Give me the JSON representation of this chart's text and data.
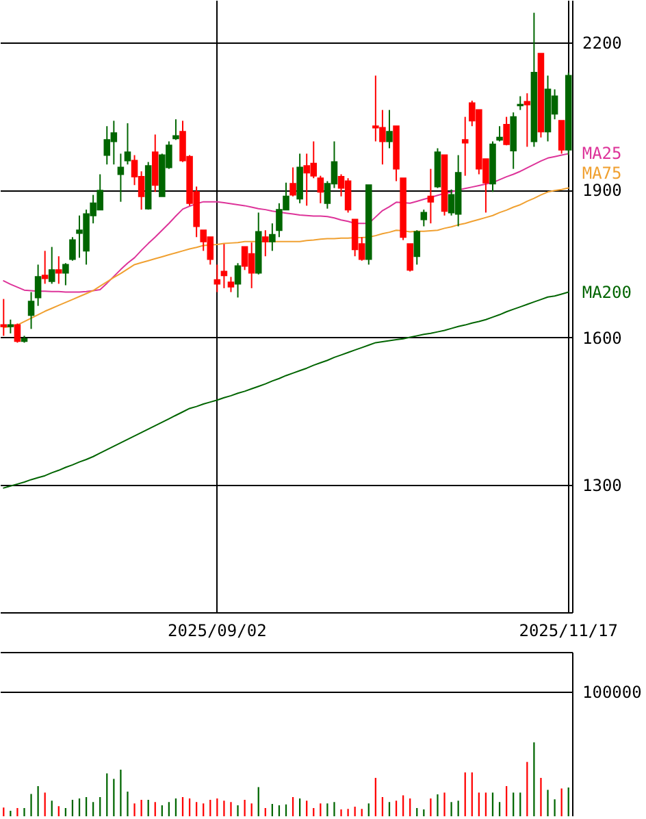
{
  "chart_data": [
    {
      "type": "candlestick",
      "categories": [
        null,
        null,
        null,
        null,
        null,
        null,
        null,
        null,
        null,
        null,
        null,
        null,
        null,
        null,
        null,
        null,
        null,
        null,
        null,
        null,
        null,
        null,
        null,
        null,
        null,
        null,
        null,
        null,
        null,
        null,
        null,
        "2025/09/02",
        null,
        null,
        null,
        null,
        null,
        null,
        null,
        null,
        null,
        null,
        null,
        null,
        null,
        null,
        null,
        null,
        null,
        null,
        null,
        null,
        null,
        null,
        null,
        null,
        null,
        null,
        null,
        null,
        null,
        null,
        null,
        null,
        null,
        null,
        null,
        null,
        null,
        null,
        null,
        null,
        null,
        null,
        null,
        null,
        null,
        null,
        null,
        null,
        null,
        null,
        "2025/11/17"
      ],
      "ohlc": [
        [
          1625,
          1678,
          1603,
          1622
        ],
        [
          1622,
          1636,
          1608,
          1625
        ],
        [
          1625,
          1628,
          1589,
          1592
        ],
        [
          1592,
          1603,
          1589,
          1597
        ],
        [
          1645,
          1692,
          1617,
          1673
        ],
        [
          1681,
          1748,
          1664,
          1723
        ],
        [
          1726,
          1776,
          1709,
          1720
        ],
        [
          1714,
          1784,
          1709,
          1737
        ],
        [
          1737,
          1765,
          1709,
          1731
        ],
        [
          1731,
          1751,
          1706,
          1748
        ],
        [
          1759,
          1804,
          1756,
          1798
        ],
        [
          1812,
          1848,
          1762,
          1818
        ],
        [
          1776,
          1860,
          1748,
          1851
        ],
        [
          1848,
          1890,
          1832,
          1873
        ],
        [
          1860,
          1932,
          1860,
          1899
        ],
        [
          1971,
          2030,
          1952,
          2002
        ],
        [
          1999,
          2041,
          1952,
          2016
        ],
        [
          1932,
          1974,
          1876,
          1946
        ],
        [
          1960,
          2036,
          1952,
          1977
        ],
        [
          1960,
          1971,
          1910,
          1927
        ],
        [
          1927,
          1938,
          1860,
          1887
        ],
        [
          1862,
          1957,
          1860,
          1949
        ],
        [
          1977,
          2013,
          1896,
          1910
        ],
        [
          1887,
          1974,
          1887,
          1971
        ],
        [
          1946,
          1999,
          1943,
          1991
        ],
        [
          2005,
          2044,
          2002,
          2010
        ],
        [
          2019,
          2041,
          1957,
          1960
        ],
        [
          1968,
          1971,
          1868,
          1873
        ],
        [
          1896,
          1907,
          1804,
          1826
        ],
        [
          1818,
          1818,
          1776,
          1795
        ],
        [
          1804,
          1804,
          1748,
          1759
        ],
        [
          1717,
          1748,
          1692,
          1709
        ],
        [
          1734,
          1790,
          1700,
          1726
        ],
        [
          1712,
          1723,
          1692,
          1703
        ],
        [
          1709,
          1751,
          1681,
          1745
        ],
        [
          1784,
          1784,
          1737,
          1745
        ],
        [
          1770,
          1793,
          1700,
          1731
        ],
        [
          1731,
          1854,
          1728,
          1815
        ],
        [
          1804,
          1818,
          1765,
          1795
        ],
        [
          1795,
          1832,
          1776,
          1809
        ],
        [
          1818,
          1873,
          1804,
          1860
        ],
        [
          1860,
          1915,
          1860,
          1887
        ],
        [
          1913,
          1946,
          1887,
          1890
        ],
        [
          1882,
          1974,
          1873,
          1946
        ],
        [
          1949,
          1974,
          1868,
          1935
        ],
        [
          1954,
          1999,
          1924,
          1929
        ],
        [
          1924,
          1929,
          1873,
          1896
        ],
        [
          1873,
          1918,
          1862,
          1913
        ],
        [
          1913,
          1999,
          1904,
          1957
        ],
        [
          1927,
          1932,
          1887,
          1904
        ],
        [
          1918,
          1924,
          1854,
          1860
        ],
        [
          1840,
          1840,
          1765,
          1779
        ],
        [
          1790,
          1804,
          1756,
          1759
        ],
        [
          1759,
          1910,
          1748,
          1910
        ],
        [
          2030,
          2133,
          1999,
          2027
        ],
        [
          2027,
          2063,
          1952,
          1999
        ],
        [
          1999,
          2063,
          1985,
          2019
        ],
        [
          2030,
          2030,
          1918,
          1943
        ],
        [
          1924,
          1924,
          1798,
          1804
        ],
        [
          1790,
          1790,
          1734,
          1737
        ],
        [
          1765,
          1818,
          1748,
          1815
        ],
        [
          1840,
          1860,
          1826,
          1854
        ],
        [
          1887,
          1943,
          1832,
          1876
        ],
        [
          1907,
          1985,
          1904,
          1977
        ],
        [
          1971,
          1971,
          1848,
          1857
        ],
        [
          1854,
          1901,
          1848,
          1890
        ],
        [
          1851,
          1971,
          1826,
          1935
        ],
        [
          2002,
          2049,
          1929,
          1996
        ],
        [
          2077,
          2082,
          2030,
          2041
        ],
        [
          2063,
          2063,
          1932,
          1943
        ],
        [
          1963,
          1963,
          1854,
          1915
        ],
        [
          1913,
          1999,
          1896,
          1993
        ],
        [
          2002,
          2030,
          1999,
          2007
        ],
        [
          2033,
          2049,
          1991,
          1993
        ],
        [
          1980,
          2058,
          1943,
          2049
        ],
        [
          2072,
          2091,
          2063,
          2074
        ],
        [
          2080,
          2097,
          1988,
          2074
        ],
        [
          1999,
          2261,
          1988,
          2139
        ],
        [
          2178,
          2178,
          2007,
          2019
        ],
        [
          2019,
          2133,
          1999,
          2105
        ],
        [
          2055,
          2105,
          2044,
          2091
        ],
        [
          2041,
          2041,
          1974,
          1982
        ],
        [
          1982,
          2139,
          1971,
          2133
        ]
      ],
      "colors": [
        "#ff0000",
        "#006600",
        "#ff0000",
        "#006600",
        "#006600",
        "#006600",
        "#ff0000",
        "#006600",
        "#ff0000",
        "#006600",
        "#006600",
        "#006600",
        "#006600",
        "#006600",
        "#006600",
        "#006600",
        "#006600",
        "#006600",
        "#006600",
        "#ff0000",
        "#ff0000",
        "#006600",
        "#ff0000",
        "#006600",
        "#006600",
        "#006600",
        "#ff0000",
        "#ff0000",
        "#ff0000",
        "#ff0000",
        "#ff0000",
        "#ff0000",
        "#ff0000",
        "#ff0000",
        "#006600",
        "#ff0000",
        "#ff0000",
        "#006600",
        "#ff0000",
        "#006600",
        "#006600",
        "#006600",
        "#ff0000",
        "#006600",
        "#ff0000",
        "#ff0000",
        "#ff0000",
        "#006600",
        "#006600",
        "#ff0000",
        "#ff0000",
        "#ff0000",
        "#ff0000",
        "#006600",
        "#ff0000",
        "#ff0000",
        "#006600",
        "#ff0000",
        "#ff0000",
        "#ff0000",
        "#006600",
        "#006600",
        "#ff0000",
        "#006600",
        "#ff0000",
        "#006600",
        "#006600",
        "#ff0000",
        "#ff0000",
        "#ff0000",
        "#ff0000",
        "#006600",
        "#006600",
        "#ff0000",
        "#006600",
        "#006600",
        "#ff0000",
        "#006600",
        "#ff0000",
        "#006600",
        "#006600",
        "#ff0000",
        "#006600"
      ],
      "series": [
        {
          "name": "MA25",
          "type": "line",
          "color": "#dd3399",
          "values": [
            1715,
            1708,
            1702,
            1696,
            1695,
            1694,
            1694,
            1693,
            1693,
            1692,
            1692,
            1692,
            1693,
            1695,
            1697,
            1710,
            1724,
            1738,
            1751,
            1762,
            1777,
            1791,
            1804,
            1818,
            1832,
            1847,
            1861,
            1867,
            1872,
            1876,
            1876,
            1876,
            1874,
            1872,
            1870,
            1868,
            1865,
            1862,
            1860,
            1857,
            1855,
            1853,
            1851,
            1849,
            1848,
            1847,
            1847,
            1846,
            1843,
            1839,
            1836,
            1832,
            1832,
            1832,
            1845,
            1858,
            1866,
            1875,
            1874,
            1873,
            1877,
            1881,
            1885,
            1889,
            1893,
            1896,
            1900,
            1903,
            1906,
            1909,
            1912,
            1915,
            1921,
            1927,
            1932,
            1938,
            1945,
            1952,
            1959,
            1965,
            1968,
            1971,
            1974
          ]
        },
        {
          "name": "MA75",
          "type": "line",
          "color": "#f0a030",
          "values": [
            1620,
            1622,
            1625,
            1632,
            1639,
            1646,
            1653,
            1659,
            1665,
            1671,
            1677,
            1683,
            1689,
            1695,
            1704,
            1713,
            1722,
            1730,
            1739,
            1748,
            1752,
            1756,
            1760,
            1764,
            1768,
            1772,
            1776,
            1780,
            1783,
            1787,
            1788,
            1789,
            1791,
            1792,
            1793,
            1795,
            1795,
            1795,
            1795,
            1795,
            1795,
            1795,
            1795,
            1795,
            1797,
            1798,
            1800,
            1801,
            1801,
            1802,
            1802,
            1803,
            1803,
            1804,
            1807,
            1811,
            1814,
            1818,
            1817,
            1815,
            1816,
            1816,
            1817,
            1818,
            1822,
            1825,
            1829,
            1832,
            1836,
            1840,
            1844,
            1848,
            1854,
            1859,
            1865,
            1870,
            1877,
            1883,
            1890,
            1896,
            1899,
            1901,
            1904
          ]
        },
        {
          "name": "MA200",
          "type": "line",
          "color": "#006400",
          "values": [
            1293,
            1297,
            1301,
            1305,
            1310,
            1314,
            1318,
            1324,
            1329,
            1335,
            1340,
            1346,
            1351,
            1357,
            1364,
            1371,
            1378,
            1385,
            1392,
            1399,
            1406,
            1413,
            1420,
            1427,
            1434,
            1441,
            1448,
            1455,
            1459,
            1464,
            1468,
            1472,
            1477,
            1481,
            1486,
            1490,
            1495,
            1500,
            1505,
            1511,
            1516,
            1522,
            1527,
            1532,
            1537,
            1543,
            1548,
            1553,
            1559,
            1564,
            1569,
            1574,
            1579,
            1584,
            1589,
            1591,
            1593,
            1595,
            1597,
            1600,
            1603,
            1606,
            1608,
            1611,
            1614,
            1618,
            1622,
            1625,
            1629,
            1632,
            1636,
            1641,
            1646,
            1652,
            1657,
            1662,
            1667,
            1672,
            1677,
            1682,
            1684,
            1688,
            1692
          ]
        }
      ],
      "ylim": [
        1040,
        2287
      ],
      "yticks": [
        1300,
        1600,
        1900,
        2200
      ],
      "grid": true
    },
    {
      "type": "bar",
      "categories": [
        null,
        null,
        null,
        null,
        null,
        null,
        null,
        null,
        null,
        null,
        null,
        null,
        null,
        null,
        null,
        null,
        null,
        null,
        null,
        null,
        null,
        null,
        null,
        null,
        null,
        null,
        null,
        null,
        null,
        null,
        null,
        null,
        null,
        null,
        null,
        null,
        null,
        null,
        null,
        null,
        null,
        null,
        null,
        null,
        null,
        null,
        null,
        null,
        null,
        null,
        null,
        null,
        null,
        null,
        null,
        null,
        null,
        null,
        null,
        null,
        null,
        null,
        null,
        null,
        null,
        null,
        null,
        null,
        null,
        null,
        null,
        null,
        null,
        null,
        null,
        null,
        null,
        null,
        null,
        null,
        null,
        null,
        null
      ],
      "values": [
        7000,
        4400,
        6600,
        6600,
        17900,
        24200,
        19000,
        12500,
        8100,
        6600,
        13200,
        14300,
        15400,
        11400,
        15400,
        34400,
        30000,
        37400,
        19800,
        10300,
        13200,
        13200,
        11400,
        8800,
        11400,
        14300,
        15400,
        14300,
        11400,
        10300,
        13200,
        14300,
        12500,
        11400,
        8800,
        13200,
        10300,
        23400,
        6600,
        9900,
        8800,
        9500,
        15400,
        14300,
        12500,
        6600,
        10300,
        10300,
        11400,
        5500,
        5900,
        7700,
        5900,
        10300,
        30800,
        15400,
        11400,
        12500,
        16800,
        14300,
        6600,
        5500,
        14300,
        17600,
        19000,
        11400,
        12500,
        35200,
        35200,
        19000,
        19000,
        19000,
        11400,
        24200,
        19000,
        19000,
        43600,
        59300,
        30800,
        21200,
        13600,
        22300,
        23100
      ],
      "colors": [
        "#ff0000",
        "#006600",
        "#ff0000",
        "#006600",
        "#006600",
        "#006600",
        "#ff0000",
        "#006600",
        "#ff0000",
        "#006600",
        "#006600",
        "#006600",
        "#006600",
        "#006600",
        "#006600",
        "#006600",
        "#006600",
        "#006600",
        "#006600",
        "#ff0000",
        "#ff0000",
        "#006600",
        "#ff0000",
        "#006600",
        "#006600",
        "#006600",
        "#ff0000",
        "#ff0000",
        "#ff0000",
        "#ff0000",
        "#ff0000",
        "#ff0000",
        "#ff0000",
        "#ff0000",
        "#006600",
        "#ff0000",
        "#ff0000",
        "#006600",
        "#ff0000",
        "#006600",
        "#006600",
        "#006600",
        "#ff0000",
        "#006600",
        "#ff0000",
        "#ff0000",
        "#ff0000",
        "#006600",
        "#006600",
        "#ff0000",
        "#ff0000",
        "#ff0000",
        "#ff0000",
        "#006600",
        "#ff0000",
        "#ff0000",
        "#006600",
        "#ff0000",
        "#ff0000",
        "#ff0000",
        "#006600",
        "#006600",
        "#ff0000",
        "#006600",
        "#ff0000",
        "#006600",
        "#006600",
        "#ff0000",
        "#ff0000",
        "#ff0000",
        "#ff0000",
        "#006600",
        "#006600",
        "#ff0000",
        "#006600",
        "#006600",
        "#ff0000",
        "#006600",
        "#ff0000",
        "#006600",
        "#006600",
        "#ff0000",
        "#006600"
      ],
      "ylim": [
        0,
        131900
      ],
      "yticks": [
        100000
      ],
      "grid": "y",
      "tick_labels": "y"
    }
  ]
}
